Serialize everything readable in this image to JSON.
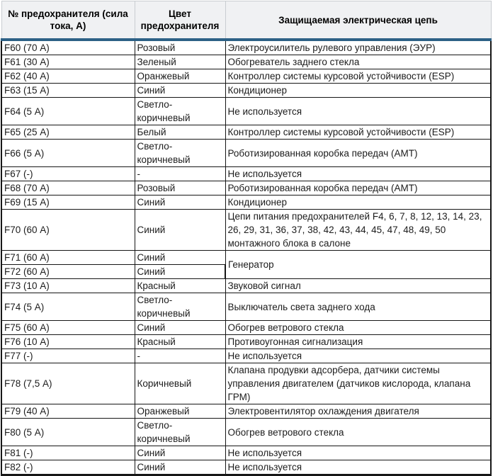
{
  "colors": {
    "accent_blue": "#2d6186",
    "body_border": "#161616",
    "header_background": "#f0f1f3",
    "header_border": "#c9cdd1",
    "text": "#1c1c1c"
  },
  "table": {
    "headers": {
      "fuse": "№ предохранителя (сила тока, А)",
      "color": "Цвет предохранителя",
      "circuit": "Защищаемая электрическая цепь"
    },
    "rows": [
      {
        "fuse": "F60 (70 А)",
        "color": "Розовый",
        "circuit": "Электроусилитель рулевого управления (ЭУР)"
      },
      {
        "fuse": "F61 (30 А)",
        "color": "Зеленый",
        "circuit": "Обогреватель заднего стекла"
      },
      {
        "fuse": "F62 (40 А)",
        "color": "Оранжевый",
        "circuit": "Контроллер системы курсовой устойчивости (ESP)"
      },
      {
        "fuse": "F63 (15 А)",
        "color": "Синий",
        "circuit": "Кондиционер"
      },
      {
        "fuse": "F64 (5 А)",
        "color": "Светло-коричневый",
        "circuit": "Не используется"
      },
      {
        "fuse": "F65 (25 А)",
        "color": "Белый",
        "circuit": "Контроллер системы курсовой устойчивости (ESP)"
      },
      {
        "fuse": "F66 (5 А)",
        "color": "Светло-коричневый",
        "circuit": "Роботизированная коробка передач (АМТ)"
      },
      {
        "fuse": "F67 (-)",
        "color": "-",
        "circuit": "Не используется"
      },
      {
        "fuse": "F68 (70 А)",
        "color": "Розовый",
        "circuit": "Роботизированная коробка передач (АМТ)"
      },
      {
        "fuse": "F69 (15 А)",
        "color": "Синий",
        "circuit": "Кондиционер"
      },
      {
        "fuse": "F70 (60 А)",
        "color": "Синий",
        "circuit": "Цепи питания предохранителей F4, 6, 7, 8, 12, 13, 14, 23, 26, 29, 31, 36, 37, 38, 42, 43, 44, 45, 47, 48, 49, 50 монтажного блока в салоне"
      },
      {
        "fuse": "F71 (60 А)",
        "color": "Синий",
        "circuit": "Генератор",
        "circuit_rowspan": 2
      },
      {
        "fuse": "F72 (60 А)",
        "color": "Синий",
        "circuit": null
      },
      {
        "fuse": "F73 (10 А)",
        "color": "Красный",
        "circuit": "Звуковой сигнал"
      },
      {
        "fuse": "F74 (5 А)",
        "color": "Светло-коричневый",
        "circuit": "Выключатель света заднего хода"
      },
      {
        "fuse": "F75 (60 А)",
        "color": "Синий",
        "circuit": "Обогрев ветрового стекла"
      },
      {
        "fuse": "F76 (10 А)",
        "color": "Красный",
        "circuit": "Противоугонная сигнализация"
      },
      {
        "fuse": "F77 (-)",
        "color": "-",
        "circuit": "Не используется"
      },
      {
        "fuse": "F78 (7,5 А)",
        "color": "Коричневый",
        "circuit": "Клапана продувки адсорбера, датчики системы управления двигателем (датчиков кислорода, клапана ГРМ)"
      },
      {
        "fuse": "F79 (40 А)",
        "color": "Оранжевый",
        "circuit": "Электровентилятор охлаждения двигателя"
      },
      {
        "fuse": "F80 (5 А)",
        "color": "Светло-коричневый",
        "circuit": "Обогрев ветрового стекла"
      },
      {
        "fuse": "F81 (-)",
        "color": "Синий",
        "circuit": "Не используется"
      },
      {
        "fuse": "F82 (-)",
        "color": "Синий",
        "circuit": "Не используется"
      }
    ]
  }
}
